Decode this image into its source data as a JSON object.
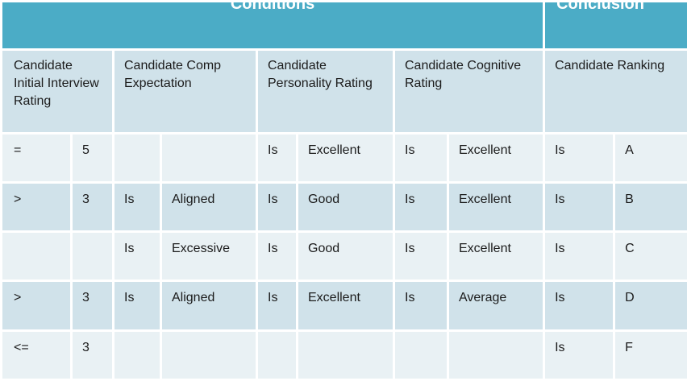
{
  "groups": {
    "conditions": "Conditions",
    "conclusion": "Conclusion"
  },
  "headers": {
    "initial_interview": "Candidate Initial Interview Rating",
    "comp_expectation": "Candidate Comp Expectation",
    "personality": "Candidate Personality Rating",
    "cognitive": "Candidate Cognitive Rating",
    "ranking": "Candidate Ranking"
  },
  "rows": [
    [
      "=",
      "5",
      "",
      "",
      "Is",
      "Excellent",
      "Is",
      "Excellent",
      "Is",
      "A"
    ],
    [
      ">",
      "3",
      "Is",
      "Aligned",
      "Is",
      "Good",
      "Is",
      "Excellent",
      "Is",
      "B"
    ],
    [
      "",
      "",
      "Is",
      "Excessive",
      "Is",
      "Good",
      "Is",
      "Excellent",
      "Is",
      "C"
    ],
    [
      ">",
      "3",
      "Is",
      "Aligned",
      "Is",
      "Excellent",
      "Is",
      "Average",
      "Is",
      "D"
    ],
    [
      "<=",
      "3",
      "",
      "",
      "",
      "",
      "",
      "",
      "Is",
      "F"
    ]
  ],
  "colors": {
    "group_header": "#4bacc6",
    "row_dark": "#d0e2ea",
    "row_light": "#e9f1f4"
  }
}
